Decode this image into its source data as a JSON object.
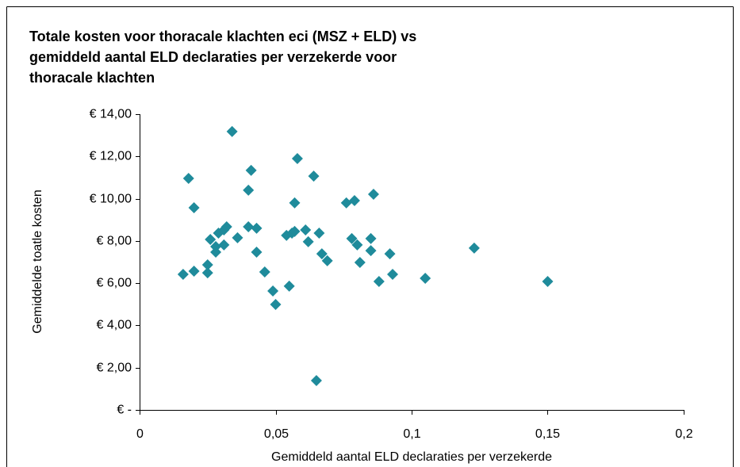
{
  "chart_data": {
    "type": "scatter",
    "title": [
      "Totale kosten voor thoracale klachten eci (MSZ + ELD) vs",
      "gemiddeld aantal ELD declaraties per verzekerde voor",
      "thoracale klachten"
    ],
    "x_label": "Gemiddeld aantal ELD declaraties per verzekerde",
    "y_label": "Gemiddelde toatle kosten",
    "color": "#1f8b9b",
    "x": [
      0.016,
      0.018,
      0.02,
      0.02,
      0.025,
      0.025,
      0.026,
      0.028,
      0.028,
      0.029,
      0.031,
      0.032,
      0.031,
      0.034,
      0.036,
      0.04,
      0.04,
      0.041,
      0.043,
      0.043,
      0.046,
      0.049,
      0.05,
      0.054,
      0.056,
      0.055,
      0.057,
      0.057,
      0.058,
      0.061,
      0.062,
      0.064,
      0.065,
      0.066,
      0.067,
      0.069,
      0.076,
      0.079,
      0.078,
      0.08,
      0.081,
      0.085,
      0.085,
      0.086,
      0.088,
      0.092,
      0.093,
      0.105,
      0.123,
      0.15
    ],
    "values": [
      6.42,
      10.96,
      6.57,
      9.57,
      6.87,
      6.49,
      8.07,
      7.47,
      7.73,
      8.37,
      8.52,
      8.67,
      7.81,
      13.18,
      8.15,
      8.67,
      10.4,
      11.34,
      8.6,
      7.47,
      6.53,
      5.63,
      4.99,
      8.26,
      8.37,
      5.86,
      8.45,
      9.8,
      11.9,
      8.52,
      7.96,
      11.07,
      1.39,
      8.37,
      7.39,
      7.06,
      9.8,
      9.91,
      8.11,
      7.81,
      6.98,
      8.11,
      7.54,
      10.21,
      6.08,
      7.39,
      6.42,
      6.23,
      7.66,
      6.08
    ],
    "xlim": [
      0,
      0.2
    ],
    "ylim": [
      0,
      14
    ],
    "xticks": [
      {
        "value": 0,
        "label": "0"
      },
      {
        "value": 0.05,
        "label": "0,05"
      },
      {
        "value": 0.1,
        "label": "0,1"
      },
      {
        "value": 0.15,
        "label": "0,15"
      },
      {
        "value": 0.2,
        "label": "0,2"
      }
    ],
    "yticks": [
      {
        "value": 0,
        "label": "€ -"
      },
      {
        "value": 2,
        "label": "€ 2,00"
      },
      {
        "value": 4,
        "label": "€ 4,00"
      },
      {
        "value": 6,
        "label": "€ 6,00"
      },
      {
        "value": 8,
        "label": "€ 8,00"
      },
      {
        "value": 10,
        "label": "€ 10,00"
      },
      {
        "value": 12,
        "label": "€ 12,00"
      },
      {
        "value": 14,
        "label": "€ 14,00"
      }
    ]
  }
}
